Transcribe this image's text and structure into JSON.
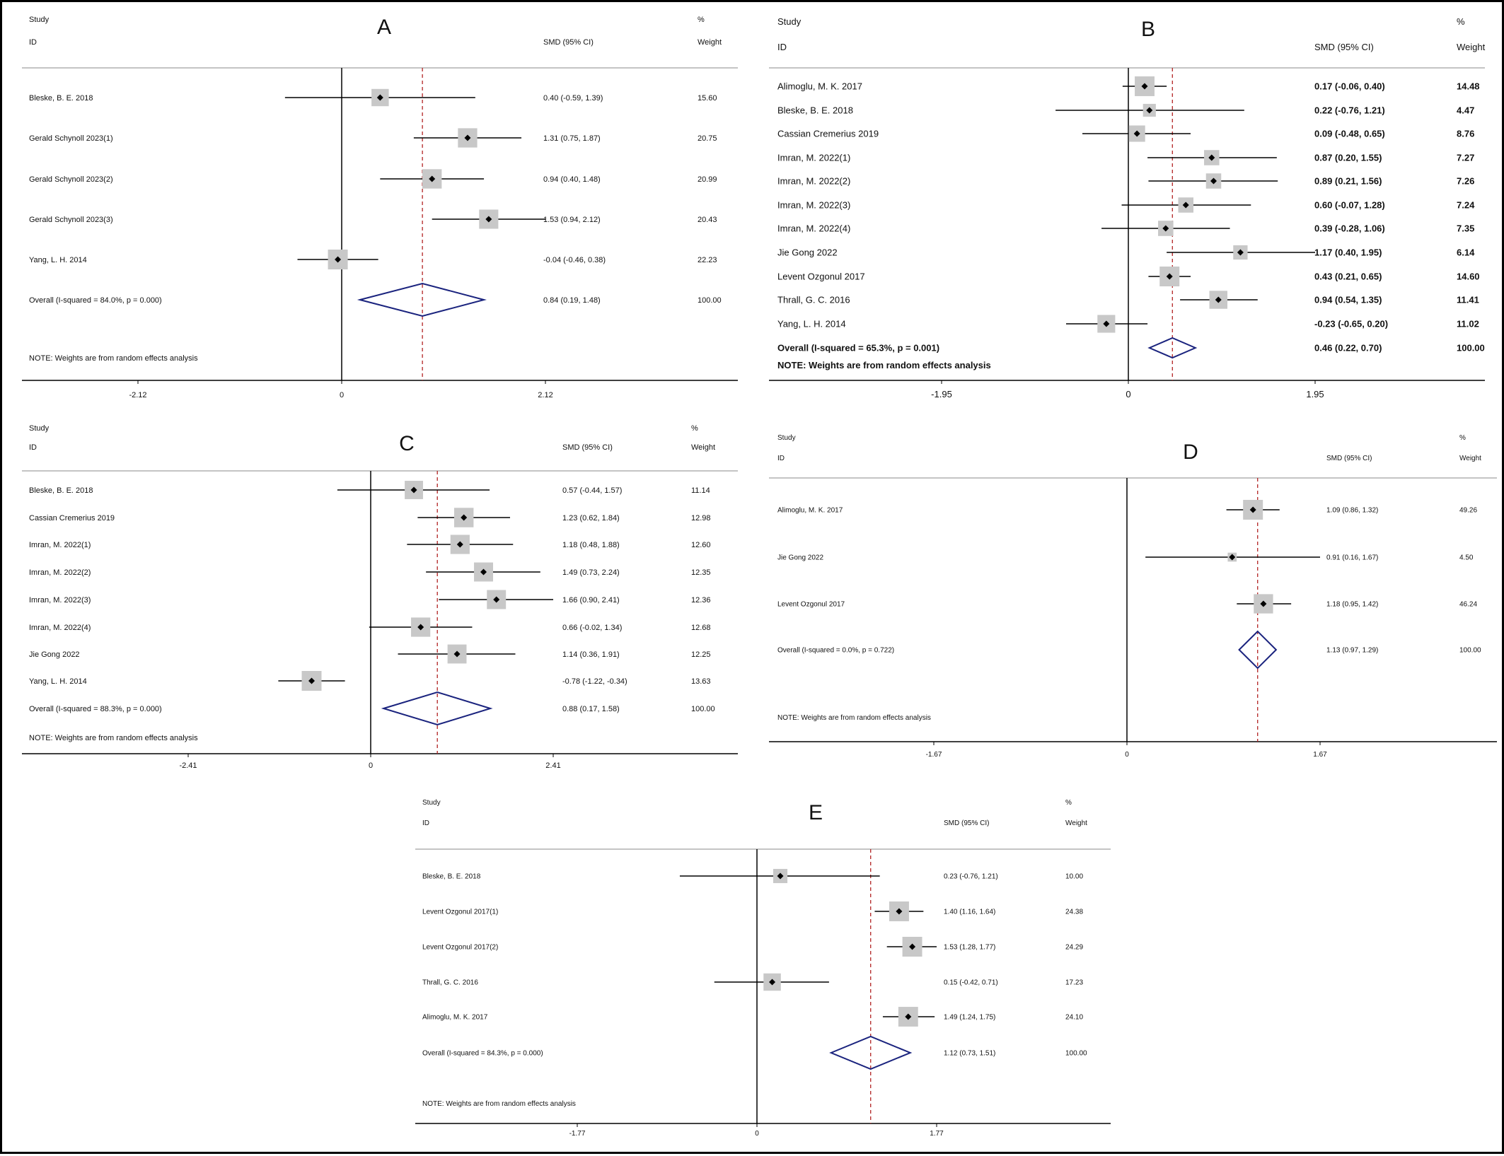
{
  "panel_labels": [
    "A",
    "B",
    "C",
    "D",
    "E"
  ],
  "headers": {
    "study": "Study",
    "id": "ID",
    "effect": "SMD (95% CI)",
    "percent": "%",
    "weight": "Weight"
  },
  "chart_data": [
    {
      "type": "forest",
      "panel": "A",
      "studies": [
        {
          "label": "Bleske, B. E. 2018",
          "smd": 0.4,
          "ci": [
            -0.59,
            1.39
          ],
          "weight": 15.6,
          "ci_text": "0.40 (-0.59, 1.39)",
          "weight_text": "15.60"
        },
        {
          "label": "Gerald Schynoll 2023(1)",
          "smd": 1.31,
          "ci": [
            0.75,
            1.87
          ],
          "weight": 20.75,
          "ci_text": "1.31 (0.75, 1.87)",
          "weight_text": "20.75"
        },
        {
          "label": "Gerald Schynoll 2023(2)",
          "smd": 0.94,
          "ci": [
            0.4,
            1.48
          ],
          "weight": 20.99,
          "ci_text": "0.94 (0.40, 1.48)",
          "weight_text": "20.99"
        },
        {
          "label": "Gerald Schynoll 2023(3)",
          "smd": 1.53,
          "ci": [
            0.94,
            2.12
          ],
          "weight": 20.43,
          "ci_text": "1.53 (0.94, 2.12)",
          "weight_text": "20.43"
        },
        {
          "label": "Yang, L. H. 2014",
          "smd": -0.04,
          "ci": [
            -0.46,
            0.38
          ],
          "weight": 22.23,
          "ci_text": "-0.04 (-0.46, 0.38)",
          "weight_text": "22.23"
        }
      ],
      "overall": {
        "label": "Overall  (I-squared = 84.0%, p = 0.000)",
        "smd": 0.84,
        "ci": [
          0.19,
          1.48
        ],
        "ci_text": "0.84 (0.19, 1.48)",
        "weight_text": "100.00"
      },
      "note": "NOTE: Weights are from random effects analysis",
      "ticks": [
        -2.12,
        0,
        2.12
      ],
      "tick_labels": [
        "-2.12",
        "0",
        "2.12"
      ]
    },
    {
      "type": "forest",
      "panel": "B",
      "studies": [
        {
          "label": "Alimoglu, M. K. 2017",
          "smd": 0.17,
          "ci": [
            -0.06,
            0.4
          ],
          "weight": 14.48,
          "ci_text": "0.17 (-0.06, 0.40)",
          "weight_text": "14.48"
        },
        {
          "label": "Bleske, B. E. 2018",
          "smd": 0.22,
          "ci": [
            -0.76,
            1.21
          ],
          "weight": 4.47,
          "ci_text": "0.22 (-0.76, 1.21)",
          "weight_text": "4.47"
        },
        {
          "label": "Cassian Cremerius 2019",
          "smd": 0.09,
          "ci": [
            -0.48,
            0.65
          ],
          "weight": 8.76,
          "ci_text": "0.09 (-0.48, 0.65)",
          "weight_text": "8.76"
        },
        {
          "label": "Imran, M. 2022(1)",
          "smd": 0.87,
          "ci": [
            0.2,
            1.55
          ],
          "weight": 7.27,
          "ci_text": "0.87 (0.20, 1.55)",
          "weight_text": "7.27"
        },
        {
          "label": "Imran, M. 2022(2)",
          "smd": 0.89,
          "ci": [
            0.21,
            1.56
          ],
          "weight": 7.26,
          "ci_text": "0.89 (0.21, 1.56)",
          "weight_text": "7.26"
        },
        {
          "label": "Imran, M. 2022(3)",
          "smd": 0.6,
          "ci": [
            -0.07,
            1.28
          ],
          "weight": 7.24,
          "ci_text": "0.60 (-0.07, 1.28)",
          "weight_text": "7.24"
        },
        {
          "label": "Imran, M. 2022(4)",
          "smd": 0.39,
          "ci": [
            -0.28,
            1.06
          ],
          "weight": 7.35,
          "ci_text": "0.39 (-0.28, 1.06)",
          "weight_text": "7.35"
        },
        {
          "label": "Jie Gong 2022",
          "smd": 1.17,
          "ci": [
            0.4,
            1.95
          ],
          "weight": 6.14,
          "ci_text": "1.17 (0.40, 1.95)",
          "weight_text": "6.14"
        },
        {
          "label": "Levent Ozgonul 2017",
          "smd": 0.43,
          "ci": [
            0.21,
            0.65
          ],
          "weight": 14.6,
          "ci_text": "0.43 (0.21, 0.65)",
          "weight_text": "14.60"
        },
        {
          "label": "Thrall, G. C. 2016",
          "smd": 0.94,
          "ci": [
            0.54,
            1.35
          ],
          "weight": 11.41,
          "ci_text": "0.94 (0.54, 1.35)",
          "weight_text": "11.41"
        },
        {
          "label": "Yang, L. H. 2014",
          "smd": -0.23,
          "ci": [
            -0.65,
            0.2
          ],
          "weight": 11.02,
          "ci_text": "-0.23 (-0.65, 0.20)",
          "weight_text": "11.02"
        }
      ],
      "overall": {
        "label": "Overall  (I-squared = 65.3%, p = 0.001)",
        "smd": 0.46,
        "ci": [
          0.22,
          0.7
        ],
        "ci_text": "0.46 (0.22, 0.70)",
        "weight_text": "100.00"
      },
      "note": "NOTE: Weights are from random effects analysis",
      "ticks": [
        -1.95,
        0,
        1.95
      ],
      "tick_labels": [
        "-1.95",
        "0",
        "1.95"
      ]
    },
    {
      "type": "forest",
      "panel": "C",
      "studies": [
        {
          "label": "Bleske, B. E. 2018",
          "smd": 0.57,
          "ci": [
            -0.44,
            1.57
          ],
          "weight": 11.14,
          "ci_text": "0.57 (-0.44, 1.57)",
          "weight_text": "11.14"
        },
        {
          "label": "Cassian Cremerius 2019",
          "smd": 1.23,
          "ci": [
            0.62,
            1.84
          ],
          "weight": 12.98,
          "ci_text": "1.23 (0.62, 1.84)",
          "weight_text": "12.98"
        },
        {
          "label": "Imran, M. 2022(1)",
          "smd": 1.18,
          "ci": [
            0.48,
            1.88
          ],
          "weight": 12.6,
          "ci_text": "1.18 (0.48, 1.88)",
          "weight_text": "12.60"
        },
        {
          "label": "Imran, M. 2022(2)",
          "smd": 1.49,
          "ci": [
            0.73,
            2.24
          ],
          "weight": 12.35,
          "ci_text": "1.49 (0.73, 2.24)",
          "weight_text": "12.35"
        },
        {
          "label": "Imran, M. 2022(3)",
          "smd": 1.66,
          "ci": [
            0.9,
            2.41
          ],
          "weight": 12.36,
          "ci_text": "1.66 (0.90, 2.41)",
          "weight_text": "12.36"
        },
        {
          "label": "Imran, M. 2022(4)",
          "smd": 0.66,
          "ci": [
            -0.02,
            1.34
          ],
          "weight": 12.68,
          "ci_text": "0.66 (-0.02, 1.34)",
          "weight_text": "12.68"
        },
        {
          "label": "Jie Gong 2022",
          "smd": 1.14,
          "ci": [
            0.36,
            1.91
          ],
          "weight": 12.25,
          "ci_text": "1.14 (0.36, 1.91)",
          "weight_text": "12.25"
        },
        {
          "label": "Yang, L. H. 2014",
          "smd": -0.78,
          "ci": [
            -1.22,
            -0.34
          ],
          "weight": 13.63,
          "ci_text": "-0.78 (-1.22, -0.34)",
          "weight_text": "13.63"
        }
      ],
      "overall": {
        "label": "Overall  (I-squared = 88.3%, p = 0.000)",
        "smd": 0.88,
        "ci": [
          0.17,
          1.58
        ],
        "ci_text": "0.88 (0.17, 1.58)",
        "weight_text": "100.00"
      },
      "note": "NOTE: Weights are from random effects analysis",
      "ticks": [
        -2.41,
        0,
        2.41
      ],
      "tick_labels": [
        "-2.41",
        "0",
        "2.41"
      ]
    },
    {
      "type": "forest",
      "panel": "D",
      "studies": [
        {
          "label": "Alimoglu, M. K. 2017",
          "smd": 1.09,
          "ci": [
            0.86,
            1.32
          ],
          "weight": 49.26,
          "ci_text": "1.09 (0.86, 1.32)",
          "weight_text": "49.26"
        },
        {
          "label": "Jie Gong 2022",
          "smd": 0.91,
          "ci": [
            0.16,
            1.67
          ],
          "weight": 4.5,
          "ci_text": "0.91 (0.16, 1.67)",
          "weight_text": "4.50"
        },
        {
          "label": "Levent Ozgonul 2017",
          "smd": 1.18,
          "ci": [
            0.95,
            1.42
          ],
          "weight": 46.24,
          "ci_text": "1.18 (0.95, 1.42)",
          "weight_text": "46.24"
        }
      ],
      "overall": {
        "label": "Overall  (I-squared = 0.0%, p = 0.722)",
        "smd": 1.13,
        "ci": [
          0.97,
          1.29
        ],
        "ci_text": "1.13 (0.97, 1.29)",
        "weight_text": "100.00"
      },
      "note": "NOTE: Weights are from random effects analysis",
      "ticks": [
        -1.67,
        0,
        1.67
      ],
      "tick_labels": [
        "-1.67",
        "0",
        "1.67"
      ]
    },
    {
      "type": "forest",
      "panel": "E",
      "studies": [
        {
          "label": "Bleske, B. E. 2018",
          "smd": 0.23,
          "ci": [
            -0.76,
            1.21
          ],
          "weight": 10.0,
          "ci_text": "0.23 (-0.76, 1.21)",
          "weight_text": "10.00"
        },
        {
          "label": "Levent Ozgonul 2017(1)",
          "smd": 1.4,
          "ci": [
            1.16,
            1.64
          ],
          "weight": 24.38,
          "ci_text": "1.40 (1.16, 1.64)",
          "weight_text": "24.38"
        },
        {
          "label": "Levent Ozgonul 2017(2)",
          "smd": 1.53,
          "ci": [
            1.28,
            1.77
          ],
          "weight": 24.29,
          "ci_text": "1.53 (1.28, 1.77)",
          "weight_text": "24.29"
        },
        {
          "label": "Thrall, G. C. 2016",
          "smd": 0.15,
          "ci": [
            -0.42,
            0.71
          ],
          "weight": 17.23,
          "ci_text": "0.15 (-0.42, 0.71)",
          "weight_text": "17.23"
        },
        {
          "label": "Alimoglu, M. K. 2017",
          "smd": 1.49,
          "ci": [
            1.24,
            1.75
          ],
          "weight": 24.1,
          "ci_text": "1.49 (1.24, 1.75)",
          "weight_text": "24.10"
        }
      ],
      "overall": {
        "label": "Overall  (I-squared = 84.3%, p = 0.000)",
        "smd": 1.12,
        "ci": [
          0.73,
          1.51
        ],
        "ci_text": "1.12 (0.73, 1.51)",
        "weight_text": "100.00"
      },
      "note": "NOTE: Weights are from random effects analysis",
      "ticks": [
        -1.77,
        0,
        1.77
      ],
      "tick_labels": [
        "-1.77",
        "0",
        "1.77"
      ]
    }
  ],
  "colors": {
    "diamond": "#1a237e",
    "pooled_line": "#b22222",
    "weight_box": "#c8c8c8",
    "line": "#000000"
  }
}
